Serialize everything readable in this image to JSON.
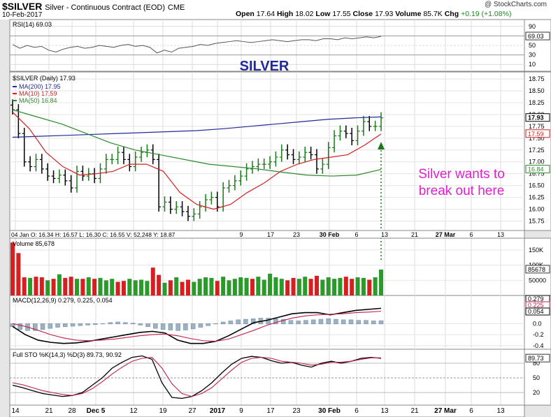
{
  "header": {
    "symbol": "$SILVER",
    "description": "Silver - Continuous Contract (EOD)",
    "exchange": "CME",
    "date": "10-Feb-2017",
    "source": "@ StockCharts.com",
    "open_label": "Open",
    "open": "17.64",
    "high_label": "High",
    "high": "18.02",
    "low_label": "Low",
    "low": "17.55",
    "close_label": "Close",
    "close": "17.93",
    "volume_label": "Volume",
    "volume": "85.7K",
    "chg_label": "Chg",
    "chg": "+0.19 (+1.08%)"
  },
  "colors": {
    "price_bar": "#1a7a1a",
    "ma200": "#1f2a9c",
    "ma10": "#d42020",
    "ma50": "#2a8a2a",
    "volume_down": "#d42020",
    "volume_up": "#2a9a2a",
    "annotation": "#e020d0",
    "title": "#1f2a9c"
  },
  "chart_data": [
    {
      "type": "line",
      "panel": "rsi",
      "label": "RSI(14) 69.03",
      "current": 69.03,
      "ylim": [
        0,
        100
      ],
      "yticks": [
        10,
        30,
        50,
        70,
        90
      ],
      "values": [
        52,
        44,
        50,
        46,
        48,
        40,
        36,
        42,
        46,
        48,
        44,
        46,
        50,
        48,
        46,
        50,
        52,
        48,
        50,
        46,
        34,
        40,
        36,
        44,
        46,
        48,
        52,
        50,
        54,
        56,
        58,
        60,
        58,
        56,
        58,
        60,
        62,
        60,
        58,
        60,
        62,
        62,
        60,
        64,
        64,
        62,
        66,
        64,
        66,
        68,
        66,
        69
      ]
    },
    {
      "type": "bar",
      "panel": "price",
      "title": "SILVER",
      "legend_header": "$SILVER (Daily) 17.93",
      "legend": [
        "MA(200) 17.95",
        "MA(10) 17.59",
        "MA(50) 16.84"
      ],
      "ylim": [
        15.55,
        18.9
      ],
      "yticks": [
        15.75,
        16.0,
        16.25,
        16.5,
        16.75,
        17.0,
        17.25,
        17.5,
        17.75,
        18.0,
        18.25,
        18.5,
        18.75
      ],
      "last_labels": [
        "17.93",
        "17.59",
        "16.84"
      ],
      "hover_text": "04 Jan O: 16.34  H: 16.57  L: 16.30  C: 16.55  V: 52,248  Y: 18.87",
      "annotation": [
        "Silver wants to",
        "break out here"
      ],
      "series": [
        {
          "name": "$SILVER",
          "close": [
            18.1,
            17.6,
            17.0,
            16.9,
            17.05,
            16.85,
            16.7,
            16.65,
            16.72,
            16.6,
            16.45,
            16.8,
            16.7,
            16.75,
            16.65,
            16.85,
            17.05,
            17.05,
            17.2,
            17.05,
            16.9,
            17.1,
            17.2,
            17.25,
            17.05,
            16.05,
            16.15,
            16.0,
            16.05,
            15.95,
            15.85,
            15.9,
            16.05,
            16.2,
            16.25,
            16.05,
            16.45,
            16.5,
            16.6,
            16.7,
            16.85,
            16.9,
            16.95,
            16.95,
            17.0,
            17.1,
            17.25,
            17.15,
            17.05,
            17.1,
            17.2,
            17.15,
            16.85,
            16.95,
            17.3,
            17.55,
            17.65,
            17.6,
            17.45,
            17.65,
            17.85,
            17.75,
            17.75,
            17.93
          ]
        },
        {
          "name": "MA(200)",
          "values": [
            17.52,
            17.54,
            17.56,
            17.58,
            17.6,
            17.62,
            17.64,
            17.66,
            17.7,
            17.75,
            17.8,
            17.85,
            17.9,
            17.93,
            17.95
          ]
        },
        {
          "name": "MA(10)",
          "values": [
            18.05,
            17.7,
            17.2,
            16.9,
            16.72,
            16.75,
            16.8,
            16.95,
            16.95,
            16.8,
            16.35,
            16.1,
            16.0,
            16.1,
            16.35,
            16.55,
            16.8,
            16.95,
            17.05,
            17.1,
            17.15,
            17.35,
            17.59
          ]
        },
        {
          "name": "MA(50)",
          "values": [
            18.1,
            17.95,
            17.8,
            17.6,
            17.4,
            17.25,
            17.15,
            17.05,
            16.95,
            16.9,
            16.85,
            16.78,
            16.72,
            16.7,
            16.72,
            16.84
          ]
        }
      ]
    },
    {
      "type": "bar",
      "panel": "volume",
      "label": "Volume 85,678",
      "yticks_labels": [
        "150K",
        "100K",
        "50000"
      ],
      "yticks": [
        150000,
        100000,
        50000
      ],
      "last_label": "85678",
      "ylim": [
        0,
        180000
      ],
      "values": [
        175000,
        140000,
        60000,
        58000,
        62000,
        60000,
        50000,
        55000,
        70000,
        58000,
        62000,
        55000,
        55000,
        60000,
        55000,
        58000,
        50000,
        55000,
        45000,
        48000,
        55000,
        50000,
        52000,
        48000,
        92000,
        68000,
        42000,
        50000,
        60000,
        45000,
        52000,
        45000,
        55000,
        60000,
        58000,
        48000,
        62000,
        50000,
        55000,
        60000,
        58000,
        55000,
        62000,
        52000,
        72000,
        60000,
        55000,
        50000,
        58000,
        55000,
        62000,
        55000,
        65000,
        52000,
        60000,
        55000,
        58000,
        62000,
        55000,
        60000,
        58000,
        52000,
        60000,
        85678
      ],
      "down_days": [
        0,
        1,
        2,
        4,
        5,
        7,
        9,
        10,
        12,
        14,
        18,
        19,
        24,
        25,
        27,
        29,
        30,
        35,
        41,
        47,
        48,
        51,
        52,
        57,
        58,
        61
      ]
    },
    {
      "type": "line",
      "panel": "macd",
      "label": "MACD(12,26,9) 0.279, 0.225, 0.054",
      "yticks": [
        0.0,
        -0.2,
        -0.4
      ],
      "last_labels": [
        "0.279",
        "0.225",
        "0.054"
      ],
      "series": [
        {
          "name": "MACD",
          "values": [
            -0.05,
            -0.2,
            -0.3,
            -0.34,
            -0.36,
            -0.35,
            -0.32,
            -0.28,
            -0.24,
            -0.2,
            -0.16,
            -0.14,
            -0.17,
            -0.3,
            -0.36,
            -0.36,
            -0.32,
            -0.22,
            -0.1,
            0.02,
            0.06,
            0.12,
            0.18,
            0.2,
            0.2,
            0.16,
            0.2,
            0.24,
            0.26,
            0.279
          ]
        },
        {
          "name": "Signal",
          "values": [
            0.0,
            -0.05,
            -0.12,
            -0.2,
            -0.26,
            -0.3,
            -0.31,
            -0.3,
            -0.28,
            -0.25,
            -0.22,
            -0.2,
            -0.19,
            -0.22,
            -0.27,
            -0.31,
            -0.32,
            -0.28,
            -0.2,
            -0.12,
            -0.03,
            0.04,
            0.1,
            0.14,
            0.16,
            0.17,
            0.18,
            0.2,
            0.21,
            0.225
          ]
        },
        {
          "name": "Histogram",
          "values": [
            -0.05,
            -0.1,
            -0.12,
            -0.12,
            -0.1,
            -0.08,
            -0.06,
            -0.05,
            -0.04,
            -0.03,
            -0.02,
            -0.01,
            0.0,
            0.02,
            0.03,
            0.02,
            0.01,
            -0.02,
            -0.05,
            -0.08,
            -0.1,
            -0.11,
            -0.12,
            -0.11,
            -0.09,
            -0.06,
            -0.03,
            0.0,
            0.03,
            0.05,
            0.07,
            0.08,
            0.09,
            0.1,
            0.1,
            0.09,
            0.08,
            0.06,
            0.05,
            0.06,
            0.07,
            0.08,
            0.09,
            0.08,
            0.07,
            0.07,
            0.06,
            0.06,
            0.05,
            0.054
          ]
        }
      ]
    },
    {
      "type": "line",
      "panel": "sto",
      "label": "Full STO %K(14,3) %D(3) 89.73, 90.92",
      "ylim": [
        0,
        100
      ],
      "yticks": [
        20,
        50,
        80
      ],
      "last_label": "89.73",
      "series": [
        {
          "name": "%K",
          "values": [
            35,
            30,
            24,
            18,
            15,
            12,
            14,
            20,
            35,
            50,
            70,
            82,
            92,
            95,
            88,
            40,
            10,
            8,
            12,
            24,
            40,
            60,
            78,
            90,
            94,
            92,
            85,
            80,
            82,
            76,
            72,
            80,
            84,
            80,
            84,
            90,
            92,
            90
          ]
        },
        {
          "name": "%D",
          "values": [
            40,
            36,
            30,
            24,
            20,
            16,
            14,
            18,
            28,
            42,
            58,
            72,
            84,
            90,
            92,
            70,
            38,
            18,
            12,
            18,
            30,
            48,
            66,
            82,
            90,
            92,
            90,
            84,
            82,
            80,
            76,
            78,
            82,
            82,
            84,
            88,
            91,
            91
          ]
        }
      ]
    }
  ],
  "x_axis": {
    "ticks": [
      "14",
      "21",
      "28",
      "Dec 5",
      "12",
      "19",
      "27",
      "2017",
      "9",
      "17",
      "23",
      "30 Feb",
      "6",
      "13",
      "21",
      "27 Mar",
      "6",
      "13"
    ],
    "mid_ticks": [
      "9",
      "17",
      "23",
      "30 Feb",
      "6",
      "13",
      "21",
      "27 Mar",
      "6",
      "13"
    ]
  }
}
